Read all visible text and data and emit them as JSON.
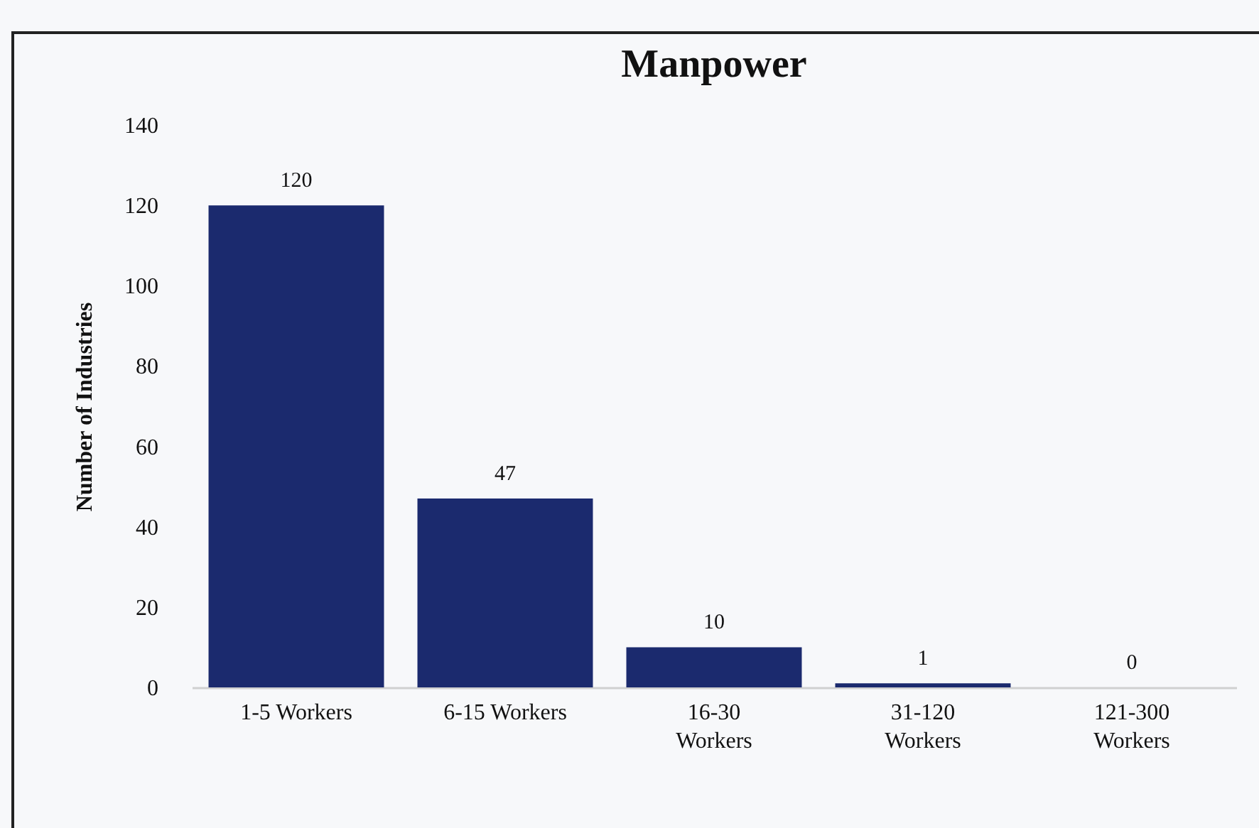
{
  "chart_data": {
    "type": "bar",
    "title": "Manpower",
    "ylabel": "Number of Industries",
    "categories": [
      "1-5 Workers",
      "6-15 Workers",
      "16-30\nWorkers",
      "31-120\nWorkers",
      "121-300\nWorkers"
    ],
    "values": [
      120,
      47,
      10,
      1,
      0
    ],
    "color": "#1b2a6e",
    "ylim": [
      0,
      140
    ],
    "yticks": [
      0,
      20,
      40,
      60,
      80,
      100,
      120,
      140
    ],
    "data_labels": true
  }
}
